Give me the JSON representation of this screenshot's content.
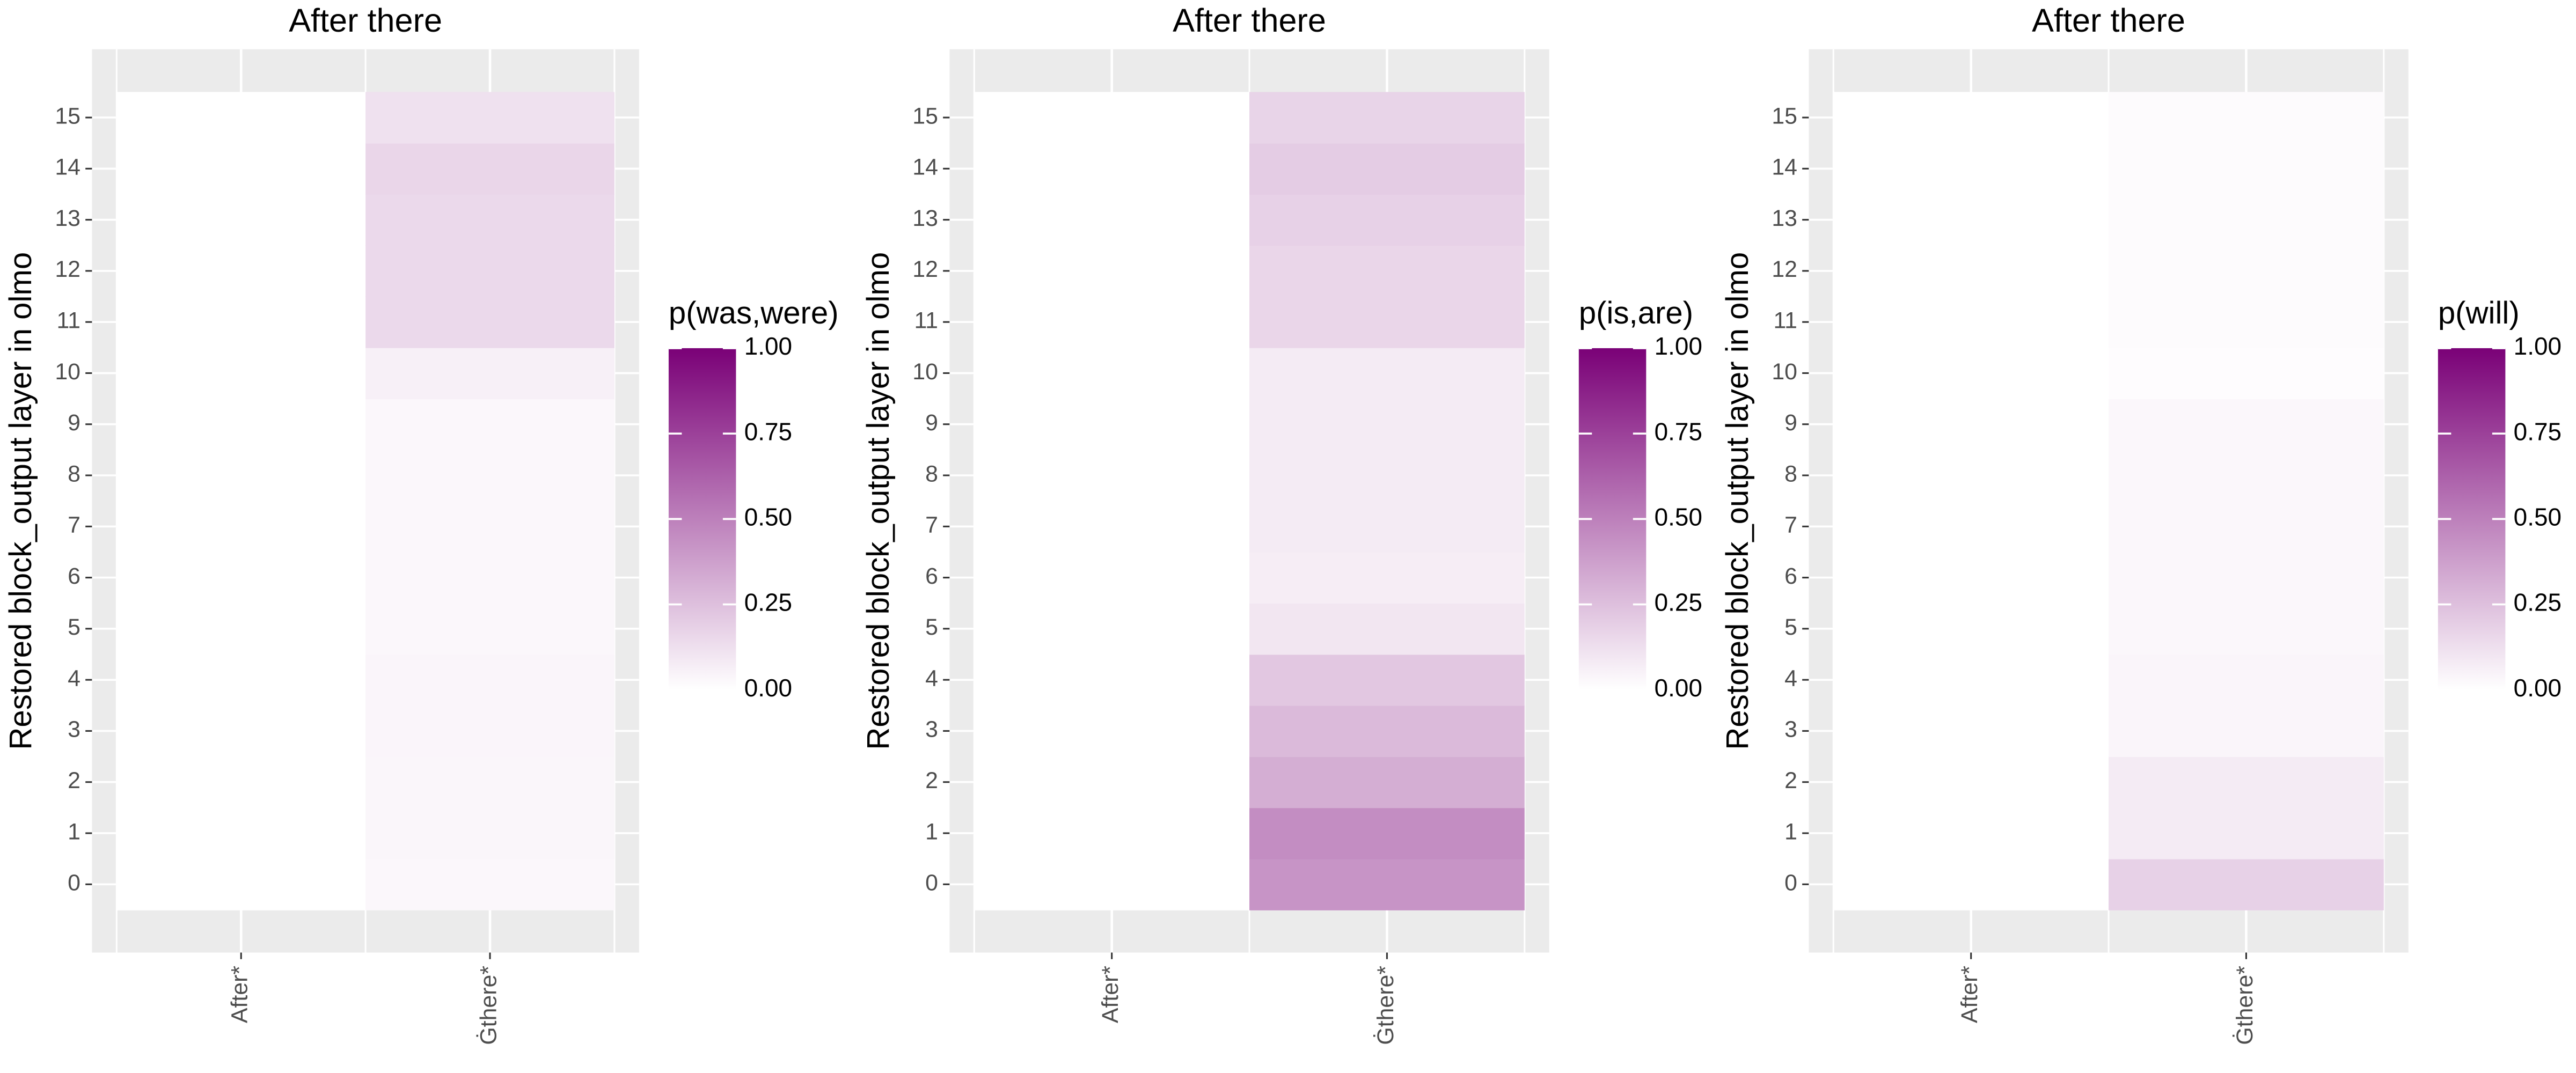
{
  "chart_data": [
    {
      "type": "heatmap",
      "title": "After there",
      "y_label": "Restored block_output layer in olmo",
      "legend_title": "p(was,were)",
      "categories": [
        "After*",
        "Ġthere*"
      ],
      "rows": [
        0,
        1,
        2,
        3,
        4,
        5,
        6,
        7,
        8,
        9,
        10,
        11,
        12,
        13,
        14,
        15
      ],
      "values": [
        [
          0,
          0.03
        ],
        [
          0,
          0.035
        ],
        [
          0,
          0.035
        ],
        [
          0,
          0.04
        ],
        [
          0,
          0.04
        ],
        [
          0,
          0.03
        ],
        [
          0,
          0.03
        ],
        [
          0,
          0.03
        ],
        [
          0,
          0.03
        ],
        [
          0,
          0.03
        ],
        [
          0,
          0.06
        ],
        [
          0,
          0.15
        ],
        [
          0,
          0.15
        ],
        [
          0,
          0.15
        ],
        [
          0,
          0.16
        ],
        [
          0,
          0.12
        ]
      ],
      "colors": [
        "#ffffff",
        "#7a0177"
      ],
      "clim": [
        0,
        1
      ],
      "cticks": [
        {
          "value": 0,
          "label": "0.00"
        },
        {
          "value": 0.25,
          "label": "0.25"
        },
        {
          "value": 0.5,
          "label": "0.50"
        },
        {
          "value": 0.75,
          "label": "0.75"
        },
        {
          "value": 1,
          "label": "1.00"
        }
      ]
    },
    {
      "type": "heatmap",
      "title": "After there",
      "y_label": "Restored block_output layer in olmo",
      "legend_title": "p(is,are)",
      "categories": [
        "After*",
        "Ġthere*"
      ],
      "rows": [
        0,
        1,
        2,
        3,
        4,
        5,
        6,
        7,
        8,
        9,
        10,
        11,
        12,
        13,
        14,
        15
      ],
      "values": [
        [
          0,
          0.42
        ],
        [
          0,
          0.45
        ],
        [
          0,
          0.32
        ],
        [
          0,
          0.27
        ],
        [
          0,
          0.22
        ],
        [
          0,
          0.1
        ],
        [
          0,
          0.07
        ],
        [
          0,
          0.08
        ],
        [
          0,
          0.08
        ],
        [
          0,
          0.08
        ],
        [
          0,
          0.08
        ],
        [
          0,
          0.16
        ],
        [
          0,
          0.16
        ],
        [
          0,
          0.18
        ],
        [
          0,
          0.2
        ],
        [
          0,
          0.17
        ]
      ],
      "colors": [
        "#ffffff",
        "#7a0177"
      ],
      "clim": [
        0,
        1
      ],
      "cticks": [
        {
          "value": 0,
          "label": "0.00"
        },
        {
          "value": 0.25,
          "label": "0.25"
        },
        {
          "value": 0.5,
          "label": "0.50"
        },
        {
          "value": 0.75,
          "label": "0.75"
        },
        {
          "value": 1,
          "label": "1.00"
        }
      ]
    },
    {
      "type": "heatmap",
      "title": "After there",
      "y_label": "Restored block_output layer in olmo",
      "legend_title": "p(will)",
      "categories": [
        "After*",
        "Ġthere*"
      ],
      "rows": [
        0,
        1,
        2,
        3,
        4,
        5,
        6,
        7,
        8,
        9,
        10,
        11,
        12,
        13,
        14,
        15
      ],
      "values": [
        [
          0,
          0.18
        ],
        [
          0,
          0.08
        ],
        [
          0,
          0.08
        ],
        [
          0,
          0.04
        ],
        [
          0,
          0.04
        ],
        [
          0,
          0.03
        ],
        [
          0,
          0.03
        ],
        [
          0,
          0.03
        ],
        [
          0,
          0.03
        ],
        [
          0,
          0.03
        ],
        [
          0,
          0.01
        ],
        [
          0,
          0.015
        ],
        [
          0,
          0.015
        ],
        [
          0,
          0.015
        ],
        [
          0,
          0.015
        ],
        [
          0,
          0.015
        ]
      ],
      "colors": [
        "#ffffff",
        "#7a0177"
      ],
      "clim": [
        0,
        1
      ],
      "cticks": [
        {
          "value": 0,
          "label": "0.00"
        },
        {
          "value": 0.25,
          "label": "0.25"
        },
        {
          "value": 0.5,
          "label": "0.50"
        },
        {
          "value": 0.75,
          "label": "0.75"
        },
        {
          "value": 1,
          "label": "1.00"
        }
      ]
    }
  ]
}
